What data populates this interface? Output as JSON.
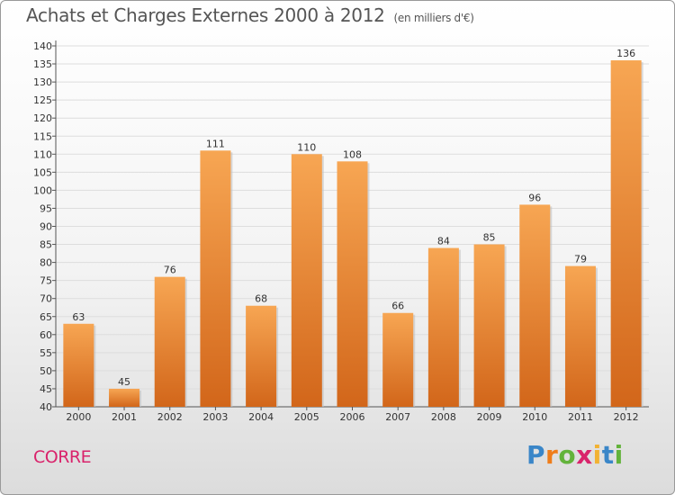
{
  "header": {
    "title": "Achats et Charges Externes 2000 à 2012",
    "unit": "(en milliers d'€)"
  },
  "footer": {
    "commune": "CORRE",
    "logo": {
      "text": "Proxiti",
      "letter_colors": [
        "#3a86c8",
        "#ef7d1a",
        "#63b33b",
        "#d9236b",
        "#f2b233",
        "#3a86c8",
        "#63b33b"
      ]
    }
  },
  "colors": {
    "bar_top": "#f7a653",
    "bar_bottom": "#d2661a",
    "bar_shadow": "#c2c2c2",
    "grid": "#dddddd",
    "axis_text": "#333333",
    "title": "#555555",
    "commune": "#d9236b"
  },
  "chart_data": {
    "type": "bar",
    "title": "Achats et Charges Externes 2000 à 2012",
    "xlabel": "",
    "ylabel": "",
    "categories": [
      "2000",
      "2001",
      "2002",
      "2003",
      "2004",
      "2005",
      "2006",
      "2007",
      "2008",
      "2009",
      "2010",
      "2011",
      "2012"
    ],
    "values": [
      63,
      45,
      76,
      111,
      68,
      110,
      108,
      66,
      84,
      85,
      96,
      79,
      136
    ],
    "value_labels": [
      "63",
      "45",
      "76",
      "111",
      "68",
      "110",
      "108",
      "66",
      "84",
      "85",
      "96",
      "79",
      "136"
    ],
    "ylim": [
      40,
      140
    ],
    "yticks": [
      "40",
      "45",
      "50",
      "55",
      "60",
      "65",
      "70",
      "75",
      "80",
      "85",
      "90",
      "95",
      "100",
      "105",
      "110",
      "115",
      "120",
      "125",
      "130",
      "135",
      "140"
    ],
    "grid": true,
    "legend": "none"
  }
}
